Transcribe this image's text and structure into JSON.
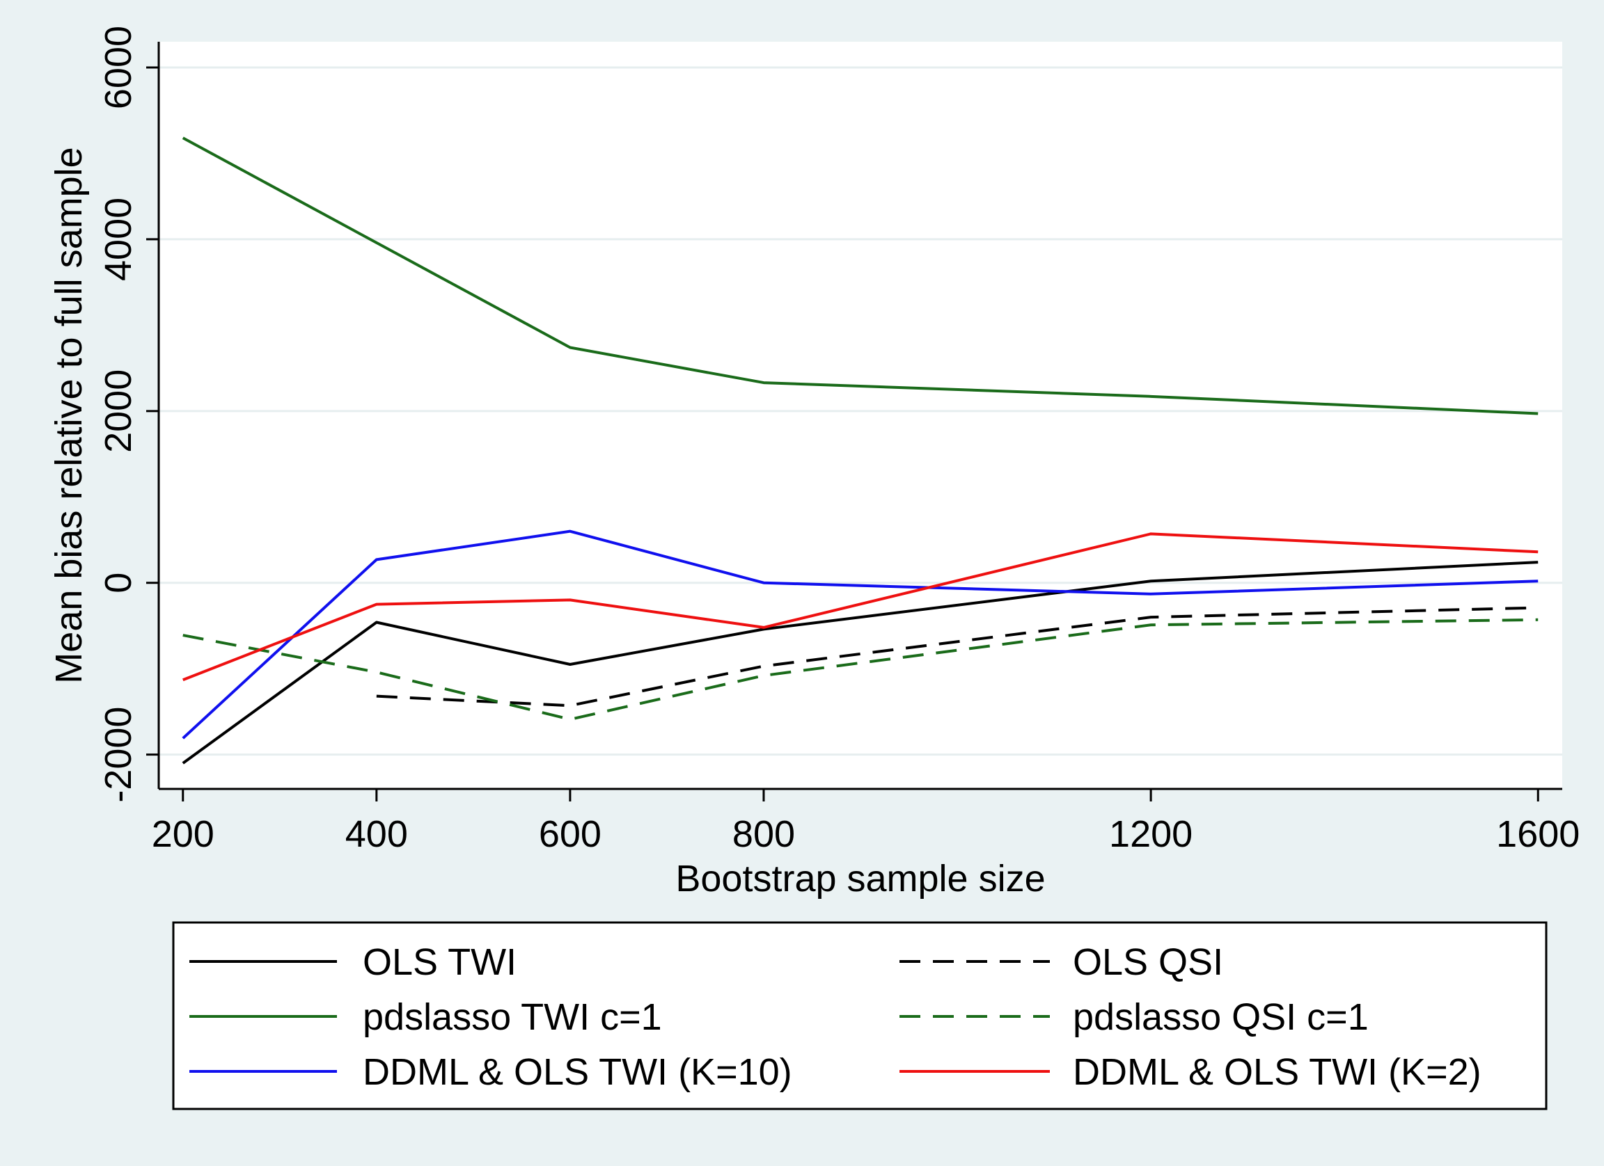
{
  "chart_data": {
    "type": "line",
    "title": "",
    "xlabel": "Bootstrap sample size",
    "ylabel": "Mean bias relative to full sample",
    "x": [
      200,
      400,
      600,
      800,
      1200,
      1600
    ],
    "x_ticks": [
      "200",
      "400",
      "600",
      "800",
      "1200",
      "1600"
    ],
    "y_ticks": [
      "-2000",
      "0",
      "2000",
      "4000",
      "6000"
    ],
    "y_tick_values": [
      -2000,
      0,
      2000,
      4000,
      6000
    ],
    "xlim": [
      175,
      1625
    ],
    "ylim": [
      -2400,
      6300
    ],
    "grid": true,
    "legend_position": "bottom",
    "series": [
      {
        "name": "OLS TWI",
        "color": "#000000",
        "dash": "solid",
        "values": [
          -2100,
          -460,
          -950,
          -540,
          20,
          240
        ]
      },
      {
        "name": "OLS QSI",
        "color": "#000000",
        "dash": "dashed",
        "values": [
          null,
          -1320,
          -1430,
          -970,
          -400,
          -290
        ]
      },
      {
        "name": "pdslasso TWI c=1",
        "color": "#1a6b1a",
        "dash": "solid",
        "values": [
          5180,
          3960,
          2740,
          2330,
          2170,
          1970
        ]
      },
      {
        "name": "pdslasso QSI c=1",
        "color": "#1a6b1a",
        "dash": "dashed",
        "values": [
          -610,
          -1040,
          -1590,
          -1080,
          -490,
          -430
        ]
      },
      {
        "name": "DDML & OLS TWI (K=10)",
        "color": "#1010ee",
        "dash": "solid",
        "values": [
          -1810,
          270,
          600,
          0,
          -130,
          20
        ]
      },
      {
        "name": "DDML & OLS TWI (K=2)",
        "color": "#ee1010",
        "dash": "solid",
        "values": [
          -1130,
          -250,
          -200,
          -520,
          570,
          360
        ]
      }
    ]
  }
}
